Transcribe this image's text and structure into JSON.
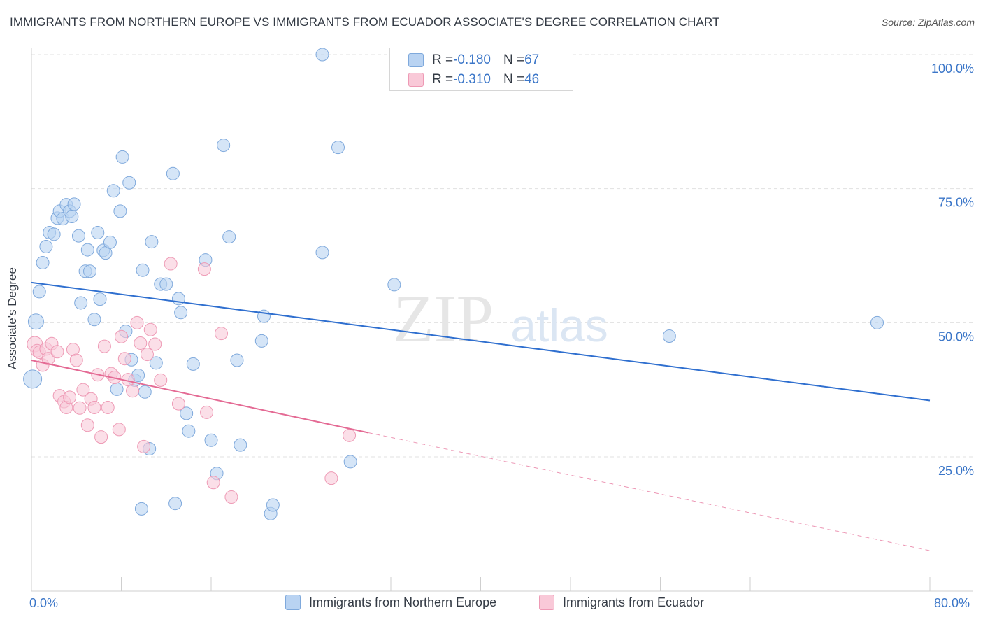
{
  "title": "IMMIGRANTS FROM NORTHERN EUROPE VS IMMIGRANTS FROM ECUADOR ASSOCIATE'S DEGREE CORRELATION CHART",
  "source": "Source: ZipAtlas.com",
  "watermark": {
    "zip": "ZIP",
    "atlas": "atlas"
  },
  "colors": {
    "blue_fill": "#b9d3f2",
    "blue_stroke": "#7fa9dc",
    "blue_line": "#2f6fcf",
    "pink_fill": "#f9c9d8",
    "pink_stroke": "#ee9ab5",
    "pink_line": "#e46a94",
    "axis_text": "#3b76c8",
    "grid": "#e1e1e1"
  },
  "legend_top": [
    {
      "r_label": "R = ",
      "r_value": "-0.180",
      "n_label": "N = ",
      "n_value": "67",
      "color": "blue"
    },
    {
      "r_label": "R = ",
      "r_value": "-0.310",
      "n_label": "N = ",
      "n_value": "46",
      "color": "pink"
    }
  ],
  "legend_bottom": [
    {
      "label": "Immigrants from Northern Europe",
      "color": "blue"
    },
    {
      "label": "Immigrants from Ecuador",
      "color": "pink"
    }
  ],
  "chart_data": {
    "type": "scatter",
    "title": "IMMIGRANTS FROM NORTHERN EUROPE VS IMMIGRANTS FROM ECUADOR ASSOCIATE'S DEGREE CORRELATION CHART",
    "xlabel": "",
    "ylabel": "Associate's Degree",
    "xlim": [
      0,
      80
    ],
    "ylim": [
      0,
      102
    ],
    "x_tick_labels": {
      "min": "0.0%",
      "max": "80.0%"
    },
    "y_ticks": [
      {
        "value": 25,
        "label": "25.0%"
      },
      {
        "value": 50,
        "label": "50.0%"
      },
      {
        "value": 75,
        "label": "75.0%"
      },
      {
        "value": 100,
        "label": "100.0%"
      }
    ],
    "x_minor_ticks": [
      0,
      8,
      16,
      24,
      32,
      40,
      48,
      56,
      64,
      72,
      80
    ],
    "series": [
      {
        "name": "Immigrants from Northern Europe",
        "color": "blue",
        "r": -0.18,
        "n": 67,
        "trend": {
          "x0": 0,
          "y0": 57.5,
          "x1": 80,
          "y1": 35.5
        },
        "points": [
          [
            0.1,
            39.5,
            26
          ],
          [
            0.4,
            50.2,
            22
          ],
          [
            0.7,
            55.8,
            18
          ],
          [
            1.0,
            61.2,
            18
          ],
          [
            1.3,
            64.2,
            18
          ],
          [
            1.6,
            66.8,
            18
          ],
          [
            2.0,
            66.5,
            18
          ],
          [
            2.3,
            69.5,
            18
          ],
          [
            2.5,
            70.8,
            18
          ],
          [
            2.8,
            69.4,
            18
          ],
          [
            3.1,
            72.0,
            18
          ],
          [
            3.4,
            70.8,
            18
          ],
          [
            3.6,
            69.8,
            18
          ],
          [
            3.8,
            72.1,
            18
          ],
          [
            4.2,
            66.2,
            18
          ],
          [
            4.4,
            53.7,
            18
          ],
          [
            4.8,
            59.6,
            18
          ],
          [
            5.0,
            63.6,
            18
          ],
          [
            5.2,
            59.6,
            18
          ],
          [
            5.6,
            50.6,
            18
          ],
          [
            5.9,
            66.8,
            18
          ],
          [
            6.1,
            54.4,
            18
          ],
          [
            6.4,
            63.5,
            18
          ],
          [
            6.6,
            63.0,
            18
          ],
          [
            7.0,
            65.0,
            18
          ],
          [
            7.3,
            74.6,
            18
          ],
          [
            7.6,
            37.6,
            18
          ],
          [
            7.9,
            70.8,
            18
          ],
          [
            8.1,
            80.9,
            18
          ],
          [
            8.4,
            48.4,
            18
          ],
          [
            8.7,
            76.1,
            18
          ],
          [
            8.9,
            43.1,
            18
          ],
          [
            9.2,
            39.3,
            18
          ],
          [
            9.5,
            40.2,
            18
          ],
          [
            9.8,
            15.3,
            18
          ],
          [
            9.9,
            59.8,
            18
          ],
          [
            10.1,
            37.1,
            18
          ],
          [
            10.5,
            26.5,
            18
          ],
          [
            10.7,
            65.1,
            18
          ],
          [
            11.1,
            42.5,
            18
          ],
          [
            11.5,
            57.2,
            18
          ],
          [
            12.0,
            57.2,
            18
          ],
          [
            12.6,
            77.8,
            18
          ],
          [
            12.8,
            16.3,
            18
          ],
          [
            13.1,
            54.5,
            18
          ],
          [
            13.3,
            51.9,
            18
          ],
          [
            13.8,
            33.1,
            18
          ],
          [
            14.0,
            29.8,
            18
          ],
          [
            14.4,
            42.3,
            18
          ],
          [
            15.5,
            61.7,
            18
          ],
          [
            16.0,
            28.1,
            18
          ],
          [
            16.5,
            21.9,
            18
          ],
          [
            17.1,
            83.1,
            18
          ],
          [
            17.6,
            66.0,
            18
          ],
          [
            18.3,
            43.0,
            18
          ],
          [
            18.6,
            27.2,
            18
          ],
          [
            20.5,
            46.6,
            18
          ],
          [
            20.7,
            51.2,
            18
          ],
          [
            21.3,
            14.4,
            18
          ],
          [
            21.5,
            16.0,
            18
          ],
          [
            25.9,
            100.0,
            18
          ],
          [
            25.9,
            63.1,
            18
          ],
          [
            27.3,
            82.7,
            18
          ],
          [
            28.4,
            24.1,
            18
          ],
          [
            32.3,
            57.1,
            18
          ],
          [
            56.8,
            47.5,
            18
          ],
          [
            75.3,
            50.0,
            18
          ]
        ]
      },
      {
        "name": "Immigrants from Ecuador",
        "color": "pink",
        "r": -0.31,
        "n": 46,
        "trend": {
          "x0": 0,
          "y0": 43.0,
          "x1": 30,
          "y1": 29.5,
          "dash_to_x": 80,
          "dash_to_y": 7.5
        },
        "points": [
          [
            0.3,
            46.0,
            22
          ],
          [
            0.5,
            44.8,
            18
          ],
          [
            0.7,
            44.5,
            18
          ],
          [
            1.0,
            42.1,
            18
          ],
          [
            1.3,
            45.1,
            18
          ],
          [
            1.5,
            43.3,
            18
          ],
          [
            1.8,
            46.1,
            18
          ],
          [
            2.3,
            44.6,
            18
          ],
          [
            2.5,
            36.4,
            18
          ],
          [
            2.9,
            35.3,
            18
          ],
          [
            3.1,
            34.2,
            18
          ],
          [
            3.4,
            36.1,
            18
          ],
          [
            3.7,
            45.0,
            18
          ],
          [
            4.0,
            43.0,
            18
          ],
          [
            4.3,
            34.1,
            18
          ],
          [
            4.6,
            37.5,
            18
          ],
          [
            5.0,
            30.9,
            18
          ],
          [
            5.3,
            35.8,
            18
          ],
          [
            5.6,
            34.2,
            18
          ],
          [
            5.9,
            40.3,
            18
          ],
          [
            6.2,
            28.7,
            18
          ],
          [
            6.5,
            45.6,
            18
          ],
          [
            6.8,
            34.2,
            18
          ],
          [
            7.1,
            40.5,
            18
          ],
          [
            7.4,
            39.8,
            18
          ],
          [
            7.8,
            30.1,
            18
          ],
          [
            8.0,
            47.4,
            18
          ],
          [
            8.3,
            43.3,
            18
          ],
          [
            8.6,
            39.4,
            18
          ],
          [
            9.0,
            37.3,
            18
          ],
          [
            9.4,
            50.0,
            18
          ],
          [
            9.7,
            46.2,
            18
          ],
          [
            10.0,
            26.9,
            18
          ],
          [
            10.3,
            44.1,
            18
          ],
          [
            10.6,
            48.7,
            18
          ],
          [
            11.0,
            46.0,
            18
          ],
          [
            11.5,
            39.3,
            18
          ],
          [
            12.4,
            61.0,
            18
          ],
          [
            13.1,
            34.9,
            18
          ],
          [
            15.4,
            60.0,
            18
          ],
          [
            15.6,
            33.3,
            18
          ],
          [
            16.2,
            20.2,
            18
          ],
          [
            16.9,
            48.0,
            18
          ],
          [
            17.8,
            17.5,
            18
          ],
          [
            26.7,
            21.0,
            18
          ],
          [
            28.3,
            29.0,
            18
          ]
        ]
      }
    ]
  }
}
